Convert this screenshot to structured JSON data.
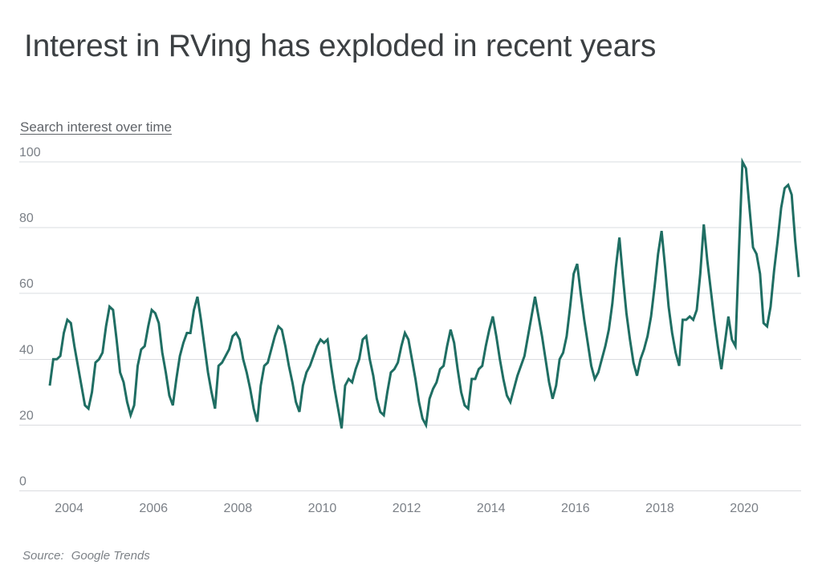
{
  "page": {
    "title": "Interest in RVing has exploded in recent years",
    "subtitle": "Search interest over time",
    "source_label": "Source:",
    "source_value": "Google Trends"
  },
  "chart_data": {
    "type": "line",
    "title": "Interest in RVing has exploded in recent years",
    "subtitle": "Search interest over time",
    "source": "Google Trends",
    "x_unit": "month",
    "x_start": "2004-01",
    "x_end": "2021-10",
    "x_tick_labels": [
      "2004",
      "2006",
      "2008",
      "2010",
      "2012",
      "2014",
      "2016",
      "2018",
      "2020"
    ],
    "yticks": [
      0,
      20,
      40,
      60,
      80,
      100
    ],
    "ylim": [
      0,
      100
    ],
    "grid": "horizontal-only",
    "legend": "none",
    "colors": {
      "line": "#1f6e63",
      "grid": "#dadce0",
      "axis_text": "#7b8087",
      "title_text": "#3c4043",
      "subtitle_text": "#5f6368",
      "source_text": "#7d8287",
      "background": "#ffffff"
    },
    "series": [
      {
        "name": "Search interest (RVing)",
        "values": [
          32,
          40,
          40,
          41,
          48,
          52,
          51,
          44,
          38,
          32,
          26,
          25,
          30,
          39,
          40,
          42,
          50,
          56,
          55,
          46,
          36,
          33,
          27,
          23,
          26,
          38,
          43,
          44,
          50,
          55,
          54,
          51,
          42,
          36,
          29,
          26,
          34,
          41,
          45,
          48,
          48,
          55,
          59,
          52,
          44,
          36,
          30,
          25,
          38,
          39,
          41,
          43,
          47,
          48,
          46,
          40,
          36,
          31,
          25,
          21,
          32,
          38,
          39,
          43,
          47,
          50,
          49,
          44,
          38,
          33,
          27,
          24,
          32,
          36,
          38,
          41,
          44,
          46,
          45,
          46,
          38,
          31,
          25,
          19,
          32,
          34,
          33,
          37,
          40,
          46,
          47,
          40,
          35,
          28,
          24,
          23,
          30,
          36,
          37,
          39,
          44,
          48,
          46,
          40,
          34,
          27,
          22,
          20,
          28,
          31,
          33,
          37,
          38,
          44,
          49,
          45,
          37,
          30,
          26,
          25,
          34,
          34,
          37,
          38,
          44,
          49,
          53,
          47,
          40,
          34,
          29,
          27,
          31,
          35,
          38,
          41,
          47,
          53,
          59,
          53,
          47,
          40,
          33,
          28,
          32,
          40,
          42,
          47,
          56,
          66,
          69,
          60,
          52,
          45,
          38,
          34,
          36,
          40,
          44,
          49,
          57,
          68,
          77,
          65,
          54,
          46,
          39,
          35,
          40,
          43,
          47,
          53,
          62,
          72,
          79,
          68,
          56,
          48,
          42,
          38,
          52,
          52,
          53,
          52,
          55,
          66,
          81,
          70,
          61,
          52,
          44,
          37,
          45,
          53,
          46,
          44,
          73,
          100,
          98,
          86,
          74,
          72,
          66,
          51,
          50,
          56,
          67,
          76,
          86,
          92,
          93,
          90,
          76,
          65
        ]
      }
    ]
  }
}
